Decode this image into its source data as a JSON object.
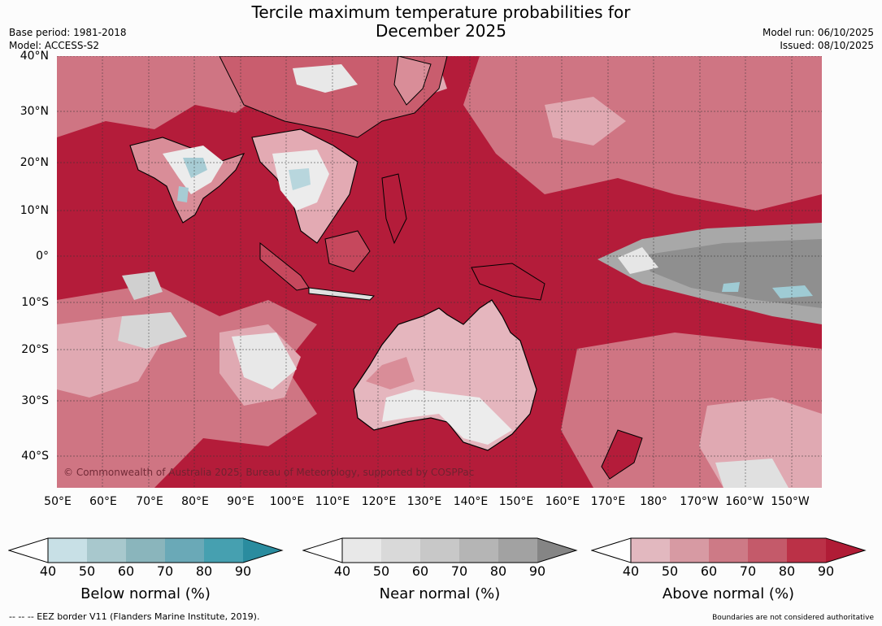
{
  "header": {
    "title_line1": "Tercile maximum temperature probabilities for",
    "title_line2": "December 2025",
    "base_period": "Base period: 1981-2018",
    "model": "Model: ACCESS-S2",
    "model_run": "Model run: 06/10/2025",
    "issued": "Issued: 08/10/2025"
  },
  "map": {
    "lat_labels": [
      "40°N",
      "30°N",
      "20°N",
      "10°N",
      "0°",
      "10°S",
      "20°S",
      "30°S",
      "40°S"
    ],
    "lon_labels": [
      "50°E",
      "60°E",
      "70°E",
      "80°E",
      "90°E",
      "100°E",
      "110°E",
      "120°E",
      "130°E",
      "140°E",
      "150°E",
      "160°E",
      "170°E",
      "180°",
      "170°W",
      "160°W",
      "150°W"
    ],
    "credit": "© Commonwealth of Australia 2025, Bureau of Meteorology, supported by COSPPac",
    "colors": {
      "ocean_above": "#b41c3a",
      "above_mid": "#d07a88",
      "above_low": "#e3b1b9",
      "near": "#e6e6e6",
      "near_dark": "#8c8c8c",
      "below": "#9fcbd4"
    }
  },
  "legends": [
    {
      "title": "Below normal (%)",
      "ticks": [
        "40",
        "50",
        "60",
        "70",
        "80",
        "90"
      ],
      "colors": [
        "#c8e0e6",
        "#a8c8cd",
        "#8ab5bc",
        "#6aa9b7",
        "#46a0b0",
        "#2a8c9f"
      ]
    },
    {
      "title": "Near normal (%)",
      "ticks": [
        "40",
        "50",
        "60",
        "70",
        "80",
        "90"
      ],
      "colors": [
        "#e8e8e8",
        "#d9d9d9",
        "#c8c8c8",
        "#b5b5b5",
        "#a2a2a2",
        "#858585"
      ]
    },
    {
      "title": "Above normal (%)",
      "ticks": [
        "40",
        "50",
        "60",
        "70",
        "80",
        "90"
      ],
      "colors": [
        "#e2b8bf",
        "#d79aa3",
        "#cd7a86",
        "#c45a6a",
        "#bb3147",
        "#b01c36"
      ]
    }
  ],
  "footer": {
    "eez_note": "--  --  -- EEZ border V11 (Flanders Marine Institute, 2019).",
    "boundaries_note": "Boundaries are not considered authoritative"
  }
}
